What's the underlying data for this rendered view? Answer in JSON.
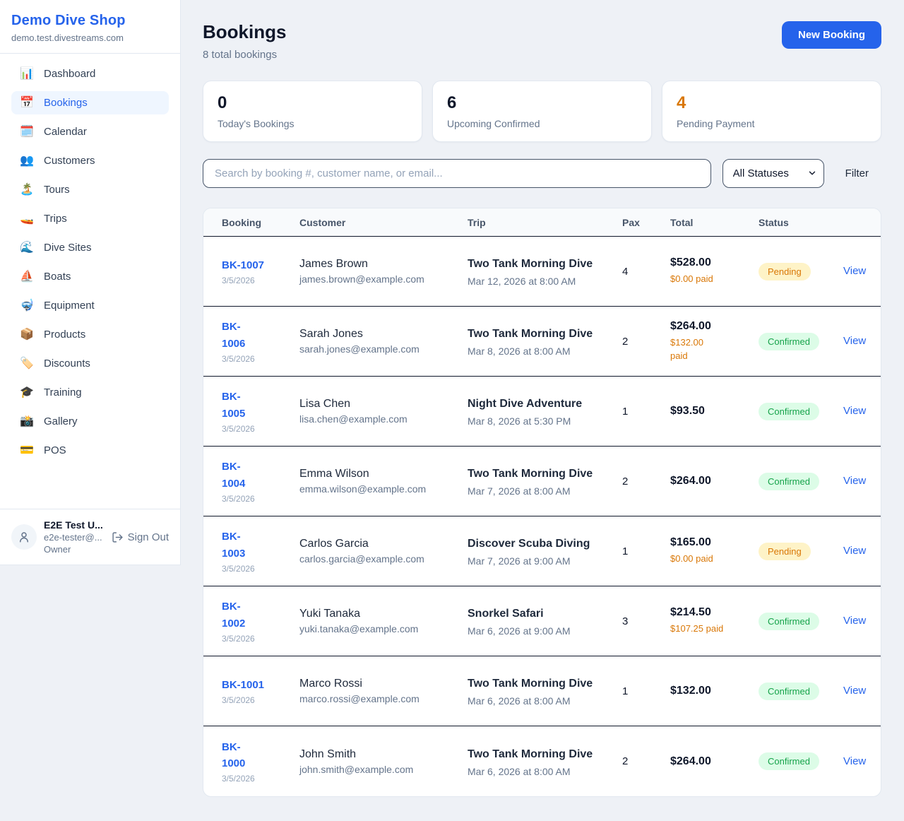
{
  "colors": {
    "accent": "#2563eb",
    "pending": "#d97706",
    "confirmed": "#16a34a"
  },
  "sidebar": {
    "brand": {
      "name": "Demo Dive Shop",
      "domain": "demo.test.divestreams.com"
    },
    "nav": [
      {
        "icon": "📊",
        "icon_name": "bar-chart-icon",
        "label": "Dashboard",
        "active": false
      },
      {
        "icon": "📅",
        "icon_name": "calendar-icon",
        "label": "Bookings",
        "active": true
      },
      {
        "icon": "🗓️",
        "icon_name": "spiral-calendar-icon",
        "label": "Calendar",
        "active": false
      },
      {
        "icon": "👥",
        "icon_name": "people-icon",
        "label": "Customers",
        "active": false
      },
      {
        "icon": "🏝️",
        "icon_name": "island-icon",
        "label": "Tours",
        "active": false
      },
      {
        "icon": "🚤",
        "icon_name": "speedboat-icon",
        "label": "Trips",
        "active": false
      },
      {
        "icon": "🌊",
        "icon_name": "wave-icon",
        "label": "Dive Sites",
        "active": false
      },
      {
        "icon": "⛵",
        "icon_name": "sailboat-icon",
        "label": "Boats",
        "active": false
      },
      {
        "icon": "🤿",
        "icon_name": "dive-mask-icon",
        "label": "Equipment",
        "active": false
      },
      {
        "icon": "📦",
        "icon_name": "package-icon",
        "label": "Products",
        "active": false
      },
      {
        "icon": "🏷️",
        "icon_name": "tag-icon",
        "label": "Discounts",
        "active": false
      },
      {
        "icon": "🎓",
        "icon_name": "graduation-cap-icon",
        "label": "Training",
        "active": false
      },
      {
        "icon": "📸",
        "icon_name": "camera-icon",
        "label": "Gallery",
        "active": false
      },
      {
        "icon": "💳",
        "icon_name": "credit-card-icon",
        "label": "POS",
        "active": false
      }
    ],
    "user": {
      "name": "E2E Test U...",
      "email": "e2e-tester@...",
      "role": "Owner",
      "sign_out_label": "Sign Out"
    }
  },
  "header": {
    "title": "Bookings",
    "subtitle": "8 total bookings",
    "new_booking_label": "New Booking"
  },
  "stats": [
    {
      "value": "0",
      "label": "Today's Bookings",
      "color": "dark"
    },
    {
      "value": "6",
      "label": "Upcoming Confirmed",
      "color": "dark"
    },
    {
      "value": "4",
      "label": "Pending Payment",
      "color": "orange"
    }
  ],
  "controls": {
    "search_placeholder": "Search by booking #, customer name, or email...",
    "status_filter": "All Statuses",
    "filter_label": "Filter"
  },
  "table": {
    "columns": [
      "Booking",
      "Customer",
      "Trip",
      "Pax",
      "Total",
      "Status"
    ],
    "view_label": "View",
    "rows": [
      {
        "id": "BK-1007",
        "date": "3/5/2026",
        "customer": "James Brown",
        "email": "james.brown@example.com",
        "trip": "Two Tank Morning Dive",
        "trip_time": "Mar 12, 2026 at 8:00 AM",
        "pax": "4",
        "total": "$528.00",
        "paid": "$0.00 paid",
        "status": "Pending",
        "status_type": "pending"
      },
      {
        "id": "BK-\n1006",
        "date": "3/5/2026",
        "customer": "Sarah Jones",
        "email": "sarah.jones@example.com",
        "trip": "Two Tank Morning Dive",
        "trip_time": "Mar 8, 2026 at 8:00 AM",
        "pax": "2",
        "total": "$264.00",
        "paid": "$132.00\npaid",
        "status": "Confirmed",
        "status_type": "confirmed"
      },
      {
        "id": "BK-\n1005",
        "date": "3/5/2026",
        "customer": "Lisa Chen",
        "email": "lisa.chen@example.com",
        "trip": "Night Dive Adventure",
        "trip_time": "Mar 8, 2026 at 5:30 PM",
        "pax": "1",
        "total": "$93.50",
        "paid": null,
        "status": "Confirmed",
        "status_type": "confirmed"
      },
      {
        "id": "BK-\n1004",
        "date": "3/5/2026",
        "customer": "Emma Wilson",
        "email": "emma.wilson@example.com",
        "trip": "Two Tank Morning Dive",
        "trip_time": "Mar 7, 2026 at 8:00 AM",
        "pax": "2",
        "total": "$264.00",
        "paid": null,
        "status": "Confirmed",
        "status_type": "confirmed"
      },
      {
        "id": "BK-\n1003",
        "date": "3/5/2026",
        "customer": "Carlos Garcia",
        "email": "carlos.garcia@example.com",
        "trip": "Discover Scuba Diving",
        "trip_time": "Mar 7, 2026 at 9:00 AM",
        "pax": "1",
        "total": "$165.00",
        "paid": "$0.00 paid",
        "status": "Pending",
        "status_type": "pending"
      },
      {
        "id": "BK-\n1002",
        "date": "3/5/2026",
        "customer": "Yuki Tanaka",
        "email": "yuki.tanaka@example.com",
        "trip": "Snorkel Safari",
        "trip_time": "Mar 6, 2026 at 9:00 AM",
        "pax": "3",
        "total": "$214.50",
        "paid": "$107.25 paid",
        "status": "Confirmed",
        "status_type": "confirmed"
      },
      {
        "id": "BK-1001",
        "date": "3/5/2026",
        "customer": "Marco Rossi",
        "email": "marco.rossi@example.com",
        "trip": "Two Tank Morning Dive",
        "trip_time": "Mar 6, 2026 at 8:00 AM",
        "pax": "1",
        "total": "$132.00",
        "paid": null,
        "status": "Confirmed",
        "status_type": "confirmed"
      },
      {
        "id": "BK-\n1000",
        "date": "3/5/2026",
        "customer": "John Smith",
        "email": "john.smith@example.com",
        "trip": "Two Tank Morning Dive",
        "trip_time": "Mar 6, 2026 at 8:00 AM",
        "pax": "2",
        "total": "$264.00",
        "paid": null,
        "status": "Confirmed",
        "status_type": "confirmed"
      }
    ]
  }
}
